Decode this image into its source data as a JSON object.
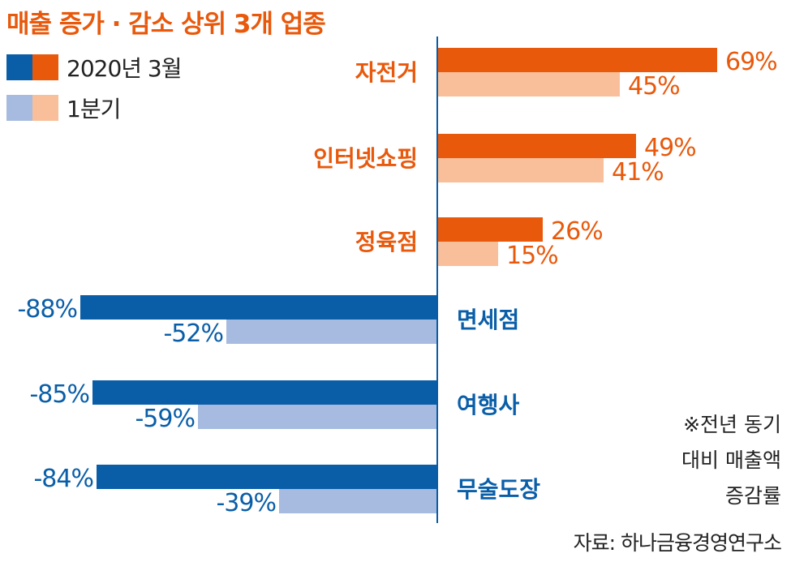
{
  "title": "매출 증가 · 감소 상위 3개 업종",
  "legend": [
    {
      "label": "2020년 3월",
      "colors": [
        "#0a5ea8",
        "#e8590c"
      ]
    },
    {
      "label": "1분기",
      "colors": [
        "#a6bbdf",
        "#f9bf9a"
      ]
    }
  ],
  "note": [
    "※전년 동기",
    "대비 매출액",
    "증감률"
  ],
  "source": "자료: 하나금융경영연구소",
  "chart_data": {
    "type": "bar",
    "orientation": "horizontal",
    "title": "매출 증가 · 감소 상위 3개 업종",
    "unit": "%",
    "categories": [
      "자전거",
      "인터넷쇼핑",
      "정육점",
      "면세점",
      "여행사",
      "무술도장"
    ],
    "series": [
      {
        "name": "2020년 3월",
        "values": [
          69,
          49,
          26,
          -88,
          -85,
          -84
        ],
        "labels": [
          "69%",
          "49%",
          "26%",
          "-88%",
          "-85%",
          "-84%"
        ]
      },
      {
        "name": "1분기",
        "values": [
          45,
          41,
          15,
          -52,
          -59,
          -39
        ],
        "labels": [
          "45%",
          "41%",
          "15%",
          "-52%",
          "-59%",
          "-39%"
        ]
      }
    ],
    "colors": {
      "positive": [
        "#e8590c",
        "#f9bf9a"
      ],
      "negative": [
        "#0a5ea8",
        "#a6bbdf"
      ],
      "positive_label": [
        "#e8590c",
        "#e8590c"
      ],
      "negative_label": [
        "#0a5ea8",
        "#0a5ea8"
      ]
    }
  }
}
